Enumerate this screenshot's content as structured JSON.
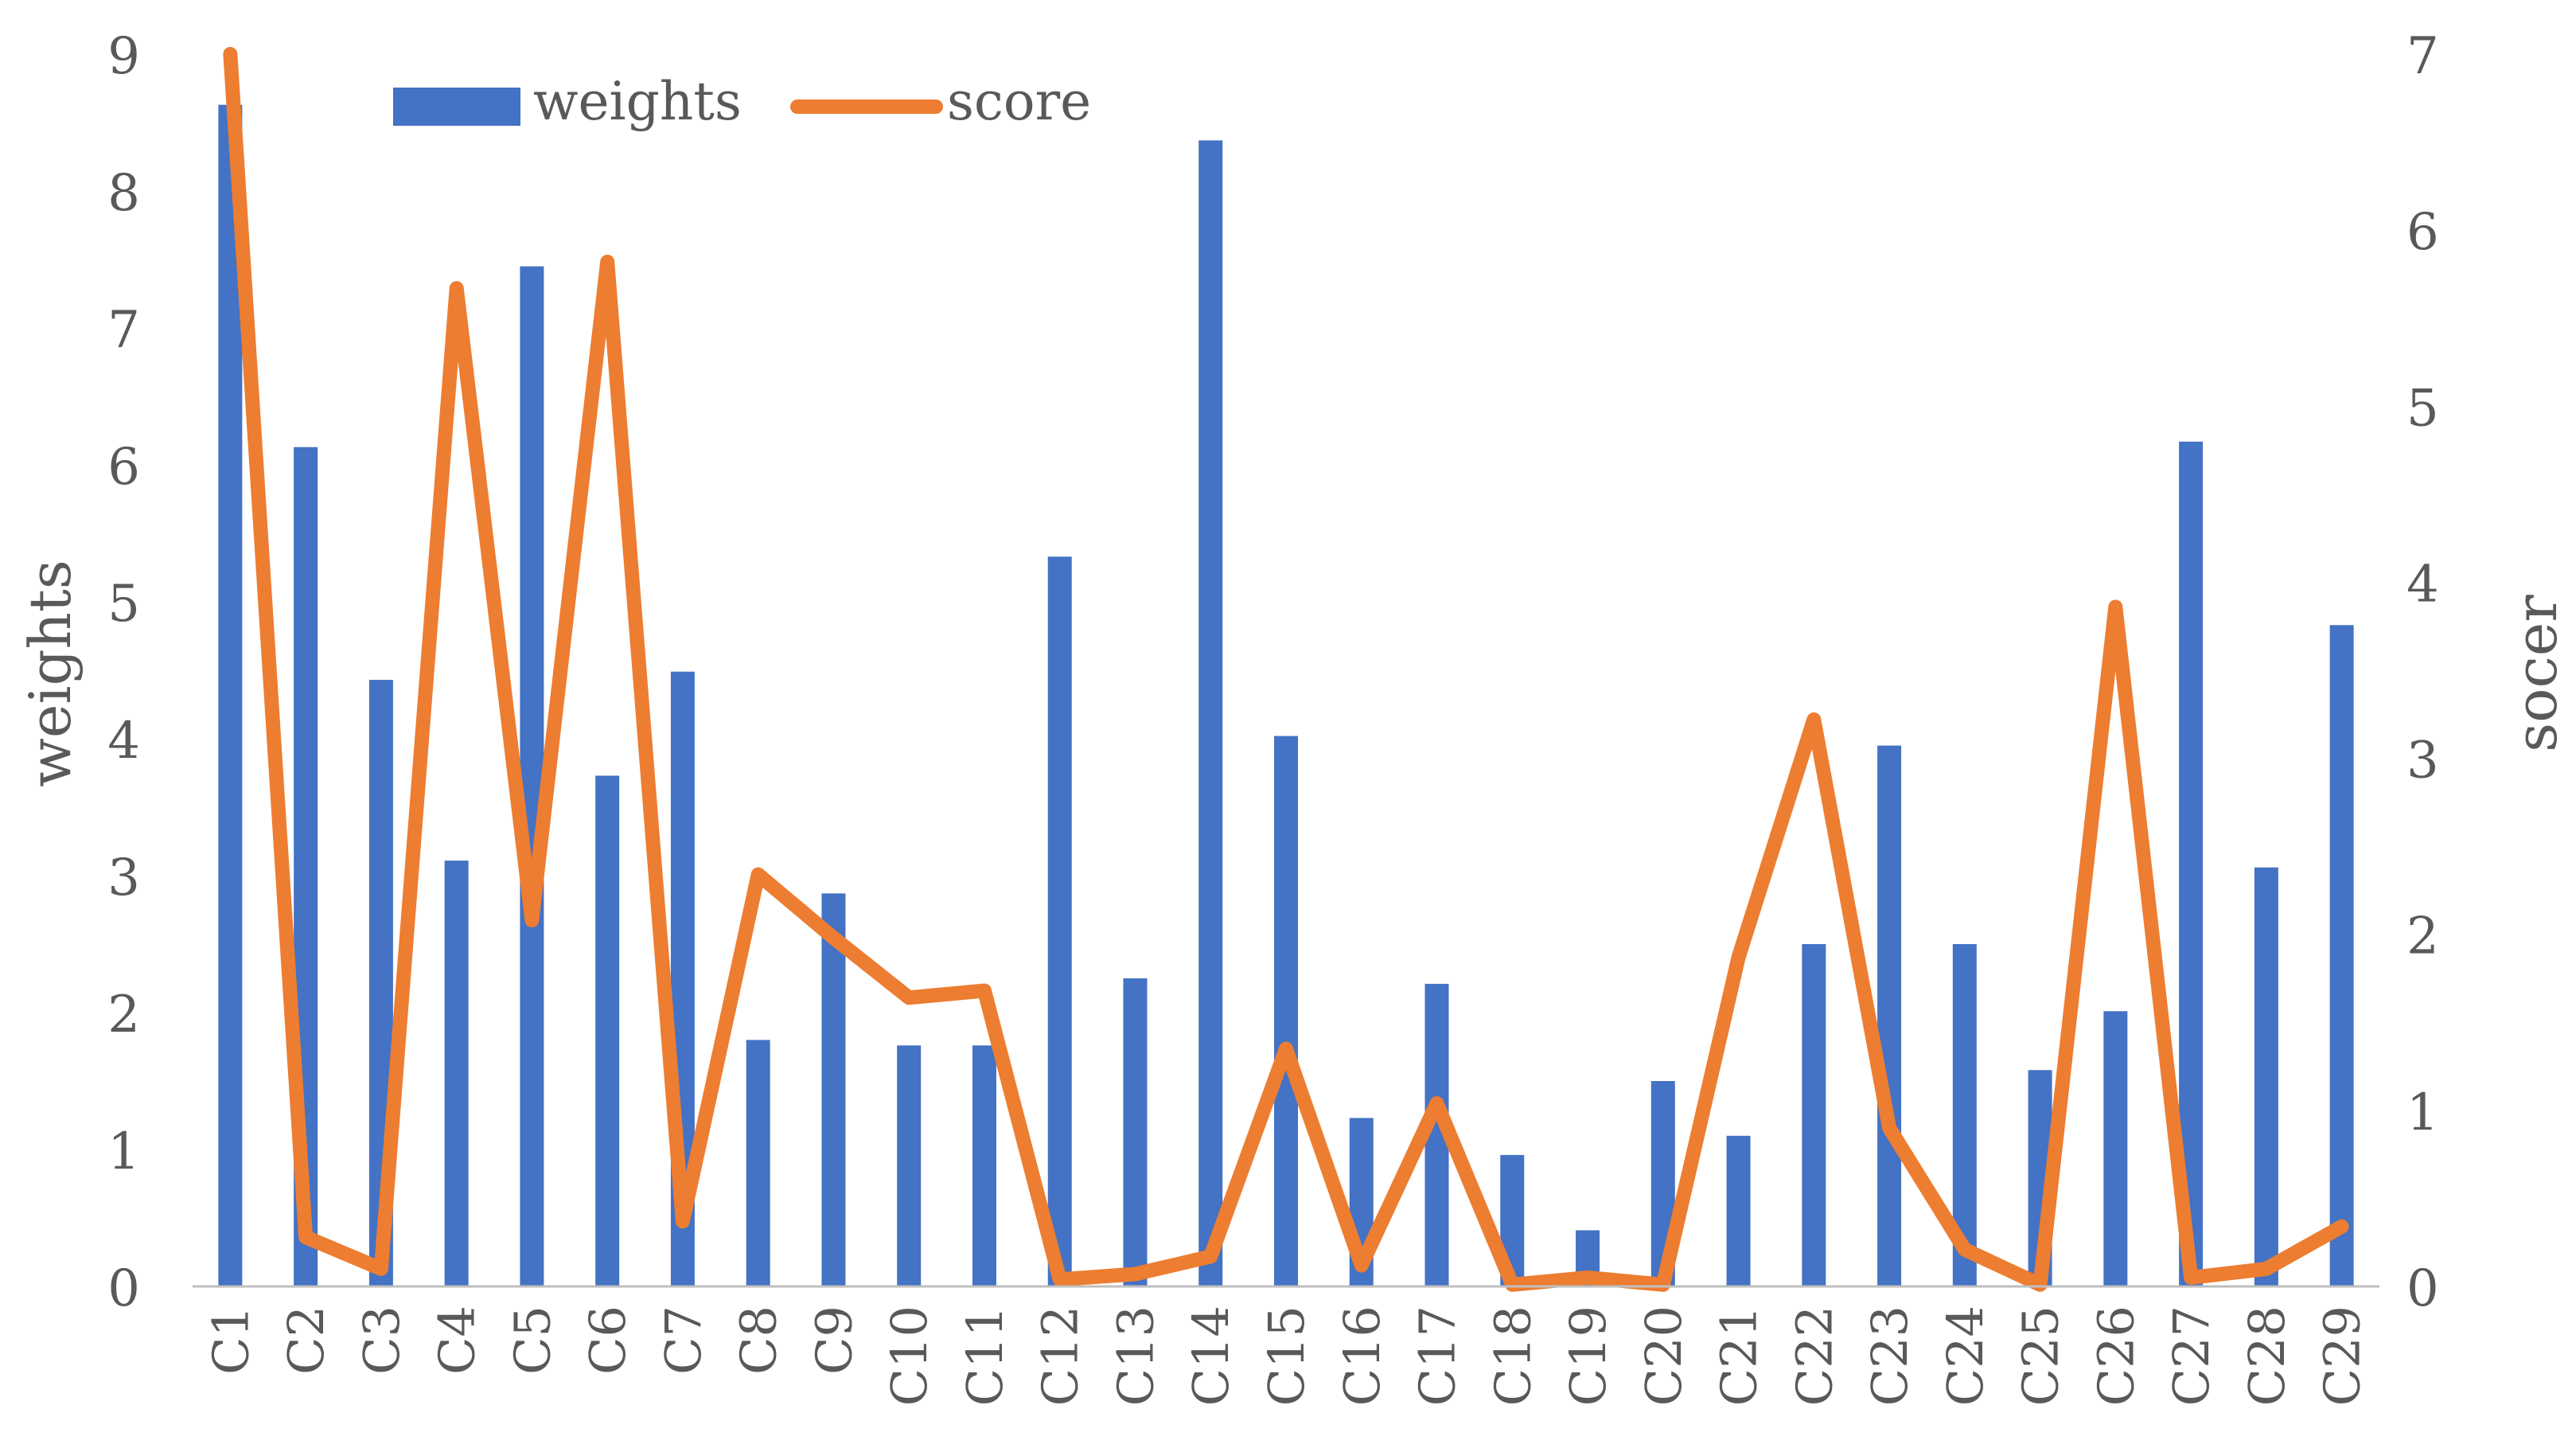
{
  "chart_data": {
    "type": "bar",
    "categories": [
      "C1",
      "C2",
      "C3",
      "C4",
      "C5",
      "C6",
      "C7",
      "C8",
      "C9",
      "C10",
      "C11",
      "C12",
      "C13",
      "C14",
      "C15",
      "C16",
      "C17",
      "C18",
      "C19",
      "C20",
      "C21",
      "C22",
      "C23",
      "C24",
      "C25",
      "C26",
      "C27",
      "C28",
      "C29"
    ],
    "series": [
      {
        "name": "weights",
        "type": "bar",
        "axis": "left",
        "color": "#4472C4",
        "values": [
          8.63,
          6.13,
          4.43,
          3.11,
          7.45,
          3.73,
          4.49,
          1.8,
          2.87,
          1.76,
          1.76,
          5.33,
          2.25,
          8.37,
          4.02,
          1.23,
          2.21,
          0.96,
          0.41,
          1.5,
          1.1,
          2.5,
          3.95,
          2.5,
          1.58,
          2.01,
          6.17,
          3.06,
          4.83
        ]
      },
      {
        "name": "score",
        "type": "line",
        "axis": "right",
        "color": "#ED7D31",
        "values": [
          7.0,
          0.28,
          0.1,
          5.67,
          2.08,
          5.82,
          0.37,
          2.34,
          1.98,
          1.64,
          1.68,
          0.04,
          0.07,
          0.17,
          1.35,
          0.12,
          1.04,
          0.01,
          0.05,
          0.01,
          1.87,
          3.22,
          0.9,
          0.21,
          0.01,
          3.86,
          0.05,
          0.1,
          0.34
        ]
      }
    ],
    "ylabel": "weights",
    "y2label": "socer",
    "ylim": [
      0,
      9
    ],
    "y2lim": [
      0,
      7
    ],
    "yticks": [
      "0",
      "1",
      "2",
      "3",
      "4",
      "5",
      "6",
      "7",
      "8",
      "9"
    ],
    "y2ticks": [
      "0",
      "1",
      "2",
      "3",
      "4",
      "5",
      "6",
      "7"
    ],
    "grid": false,
    "legend": "top-left"
  }
}
